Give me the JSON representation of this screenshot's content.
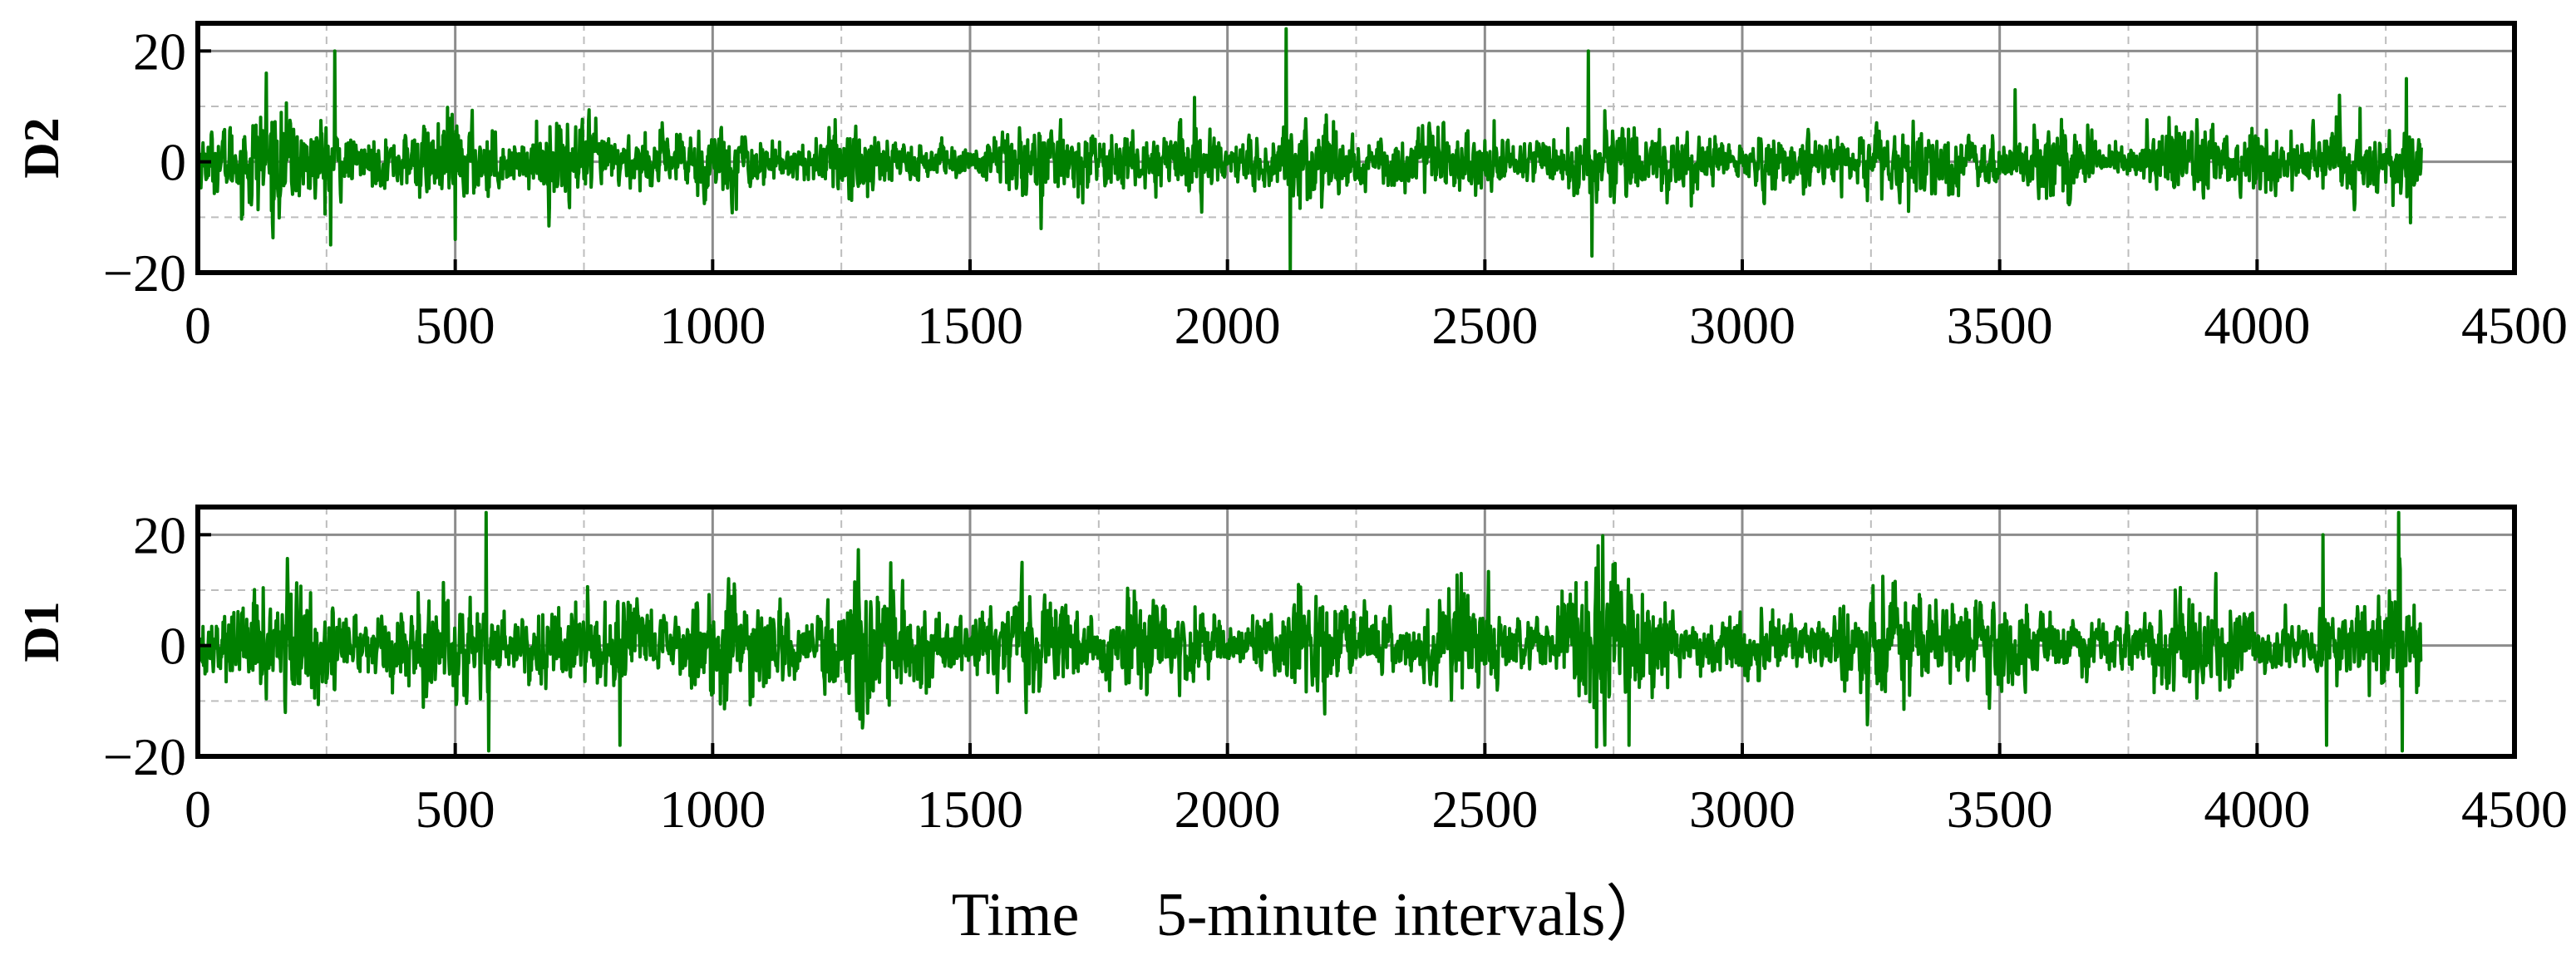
{
  "figure": {
    "xlabel": "Time　 5-minute intervals）"
  },
  "chart_data": [
    {
      "type": "line",
      "ylabel": "D2",
      "xlim": [
        0,
        4500
      ],
      "ylim": [
        -20,
        25
      ],
      "xticks": [
        0,
        500,
        1000,
        1500,
        2000,
        2500,
        3000,
        3500,
        4000,
        4500
      ],
      "yticks": [
        -20,
        0,
        20
      ],
      "minor_gridlines_y": [
        -10,
        10
      ],
      "minor_gridlines_x": [
        250,
        750,
        1250,
        1750,
        2250,
        2750,
        3250,
        3750,
        4250
      ],
      "grid": true,
      "n_points": 4320,
      "series": [
        {
          "color": "#008000",
          "envelope": [
            [
              0,
              5
            ],
            [
              40,
              6
            ],
            [
              100,
              10
            ],
            [
              140,
              12
            ],
            [
              200,
              8
            ],
            [
              260,
              8
            ],
            [
              300,
              4
            ],
            [
              380,
              5
            ],
            [
              440,
              7
            ],
            [
              500,
              9
            ],
            [
              560,
              7
            ],
            [
              620,
              3
            ],
            [
              680,
              8
            ],
            [
              740,
              9
            ],
            [
              800,
              5
            ],
            [
              880,
              5
            ],
            [
              940,
              6
            ],
            [
              1000,
              8
            ],
            [
              1060,
              6
            ],
            [
              1130,
              3
            ],
            [
              1200,
              4
            ],
            [
              1250,
              8
            ],
            [
              1300,
              8
            ],
            [
              1360,
              5
            ],
            [
              1440,
              3
            ],
            [
              1500,
              3
            ],
            [
              1560,
              6
            ],
            [
              1640,
              8
            ],
            [
              1700,
              5
            ],
            [
              1780,
              5
            ],
            [
              1860,
              6
            ],
            [
              1940,
              8
            ],
            [
              2000,
              3
            ],
            [
              2060,
              5
            ],
            [
              2100,
              7
            ],
            [
              2160,
              9
            ],
            [
              2220,
              8
            ],
            [
              2300,
              4
            ],
            [
              2400,
              7
            ],
            [
              2500,
              6
            ],
            [
              2560,
              3
            ],
            [
              2620,
              4
            ],
            [
              2700,
              6
            ],
            [
              2760,
              8
            ],
            [
              2820,
              5
            ],
            [
              2880,
              6
            ],
            [
              2940,
              5
            ],
            [
              3000,
              3
            ],
            [
              3060,
              6
            ],
            [
              3120,
              5
            ],
            [
              3200,
              5
            ],
            [
              3260,
              6
            ],
            [
              3320,
              8
            ],
            [
              3380,
              6
            ],
            [
              3440,
              6
            ],
            [
              3500,
              4
            ],
            [
              3560,
              5
            ],
            [
              3620,
              8
            ],
            [
              3700,
              4
            ],
            [
              3760,
              3
            ],
            [
              3820,
              7
            ],
            [
              3880,
              9
            ],
            [
              3940,
              5
            ],
            [
              4000,
              6
            ],
            [
              4060,
              4
            ],
            [
              4120,
              6
            ],
            [
              4180,
              8
            ],
            [
              4240,
              6
            ],
            [
              4300,
              7
            ],
            [
              4320,
              6
            ]
          ],
          "spikes": [
            [
              133,
              16
            ],
            [
              145,
              -11
            ],
            [
              258,
              -15
            ],
            [
              266,
              20
            ],
            [
              500,
              -14
            ],
            [
              2114,
              24
            ],
            [
              2122,
              -20
            ],
            [
              2701,
              20
            ],
            [
              2708,
              -17
            ],
            [
              3530,
              13
            ],
            [
              4290,
              15
            ],
            [
              4298,
              -11
            ],
            [
              4160,
              12
            ]
          ]
        }
      ]
    },
    {
      "type": "line",
      "ylabel": "D1",
      "xlim": [
        0,
        4500
      ],
      "ylim": [
        -20,
        25
      ],
      "xticks": [
        0,
        500,
        1000,
        1500,
        2000,
        2500,
        3000,
        3500,
        4000,
        4500
      ],
      "yticks": [
        -20,
        0,
        20
      ],
      "minor_gridlines_y": [
        -10,
        10
      ],
      "minor_gridlines_x": [
        250,
        750,
        1250,
        1750,
        2250,
        2750,
        3250,
        3750,
        4250
      ],
      "grid": true,
      "n_points": 4320,
      "series": [
        {
          "color": "#008000",
          "envelope": [
            [
              0,
              6
            ],
            [
              40,
              5
            ],
            [
              100,
              10
            ],
            [
              170,
              12
            ],
            [
              240,
              10
            ],
            [
              300,
              5
            ],
            [
              360,
              6
            ],
            [
              440,
              10
            ],
            [
              520,
              11
            ],
            [
              600,
              6
            ],
            [
              680,
              6
            ],
            [
              760,
              9
            ],
            [
              840,
              8
            ],
            [
              900,
              5
            ],
            [
              960,
              8
            ],
            [
              1060,
              11
            ],
            [
              1120,
              8
            ],
            [
              1180,
              5
            ],
            [
              1260,
              12
            ],
            [
              1340,
              14
            ],
            [
              1400,
              9
            ],
            [
              1460,
              4
            ],
            [
              1540,
              8
            ],
            [
              1620,
              11
            ],
            [
              1680,
              9
            ],
            [
              1740,
              4
            ],
            [
              1800,
              9
            ],
            [
              1880,
              10
            ],
            [
              1960,
              7
            ],
            [
              2020,
              3
            ],
            [
              2080,
              8
            ],
            [
              2160,
              11
            ],
            [
              2240,
              9
            ],
            [
              2300,
              5
            ],
            [
              2360,
              5
            ],
            [
              2430,
              9
            ],
            [
              2500,
              10
            ],
            [
              2560,
              5
            ],
            [
              2620,
              4
            ],
            [
              2700,
              15
            ],
            [
              2760,
              15
            ],
            [
              2820,
              9
            ],
            [
              2880,
              5
            ],
            [
              2940,
              5
            ],
            [
              3000,
              8
            ],
            [
              3060,
              7
            ],
            [
              3120,
              4
            ],
            [
              3200,
              7
            ],
            [
              3260,
              11
            ],
            [
              3320,
              12
            ],
            [
              3380,
              9
            ],
            [
              3440,
              8
            ],
            [
              3500,
              10
            ],
            [
              3560,
              8
            ],
            [
              3640,
              5
            ],
            [
              3720,
              5
            ],
            [
              3780,
              5
            ],
            [
              3840,
              11
            ],
            [
              3900,
              10
            ],
            [
              3960,
              7
            ],
            [
              4020,
              5
            ],
            [
              4100,
              4
            ],
            [
              4160,
              8
            ],
            [
              4220,
              8
            ],
            [
              4280,
              12
            ],
            [
              4320,
              8
            ]
          ],
          "spikes": [
            [
              560,
              24
            ],
            [
              565,
              -19
            ],
            [
              820,
              -18
            ],
            [
              2720,
              18
            ],
            [
              2780,
              -18
            ],
            [
              4128,
              20
            ],
            [
              4135,
              -18
            ],
            [
              4275,
              24
            ],
            [
              4282,
              -19
            ]
          ]
        }
      ]
    }
  ]
}
